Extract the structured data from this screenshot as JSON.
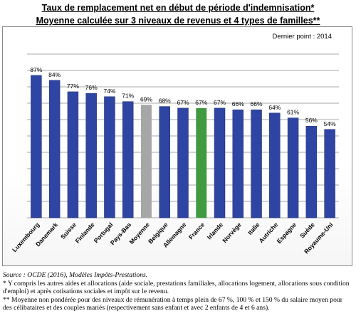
{
  "header": {
    "title_line1": "Taux de remplacement net en début de période d'indemnisation*",
    "title_line2": "Moyenne calculée sur 3 niveaux de revenus et 4 types de familles**"
  },
  "chart_data": {
    "type": "bar",
    "note": "Dernier point : 2014",
    "categories": [
      "Luxembourg",
      "Danemark",
      "Suisse",
      "Finlande",
      "Portugal",
      "Pays-Bas",
      "Moyenne",
      "Belgique",
      "Allemagne",
      "France",
      "Irlande",
      "Norvège",
      "Italie",
      "Autriche",
      "Espagne",
      "Suède",
      "Royaume-Uni"
    ],
    "values": [
      87,
      84,
      77,
      76,
      74,
      71,
      69,
      68,
      67,
      67,
      67,
      66,
      66,
      64,
      61,
      56,
      54
    ],
    "data_labels": [
      "87%",
      "84%",
      "77%",
      "76%",
      "74%",
      "71%",
      "69%",
      "68%",
      "67%",
      "67%",
      "67%",
      "66%",
      "66%",
      "64%",
      "61%",
      "56%",
      "54%"
    ],
    "ylim": [
      0,
      100
    ],
    "grid": true,
    "colors": {
      "default": "#2f45a3",
      "Moyenne": "#a6a6a6",
      "France": "#3f9a40",
      "grid": "#8c8c8c"
    }
  },
  "footer": {
    "source": "Source : OCDE (2016), Modèles Impôts-Prestations.",
    "note1": "* Y compris les autres aides et allocations (aide sociale, prestations familiales, allocations logement, allocations sous condition d'emploi) et après cotisations sociales et impôt sur le revenu.",
    "note2": "** Moyenne non pondérée pour des niveaux de rémunération à temps plein de 67 %, 100 % et 150 % du salaire moyen pour des célibataires et des couples mariés (respectivement sans enfant et avec 2 enfants de 4 et 6 ans)."
  }
}
